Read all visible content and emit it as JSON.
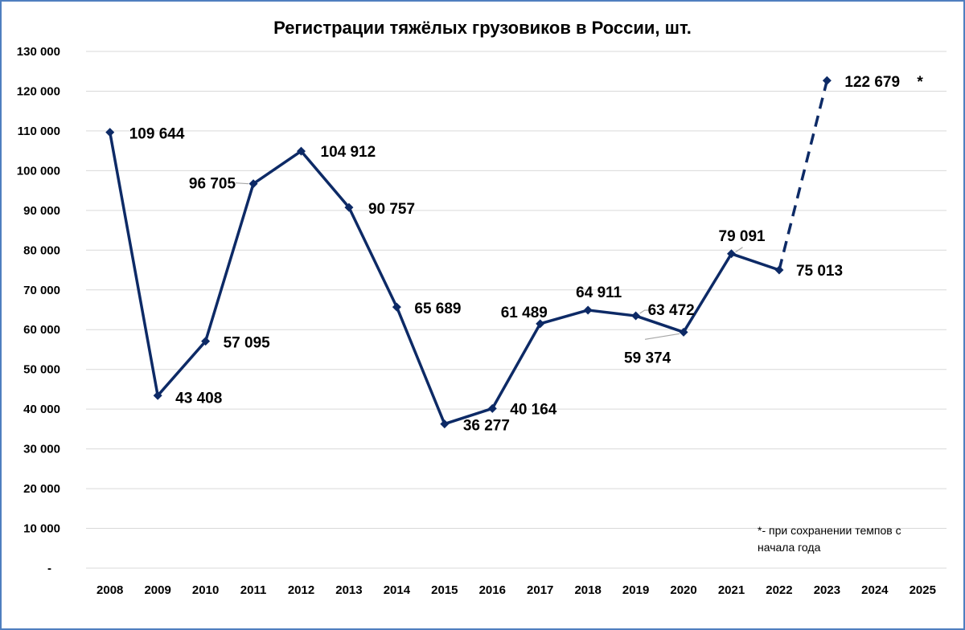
{
  "chart_data": {
    "type": "line",
    "title": "Регистрации тяжёлых грузовиков в России, шт.",
    "xlabel": "",
    "ylabel": "",
    "ylim": [
      0,
      130000
    ],
    "y_ticks": [
      0,
      10000,
      20000,
      30000,
      40000,
      50000,
      60000,
      70000,
      80000,
      90000,
      100000,
      110000,
      120000,
      130000
    ],
    "y_tick_labels": [
      "-",
      "10 000",
      "20 000",
      "30 000",
      "40 000",
      "50 000",
      "60 000",
      "70 000",
      "80 000",
      "90 000",
      "100 000",
      "110 000",
      "120 000",
      "130 000"
    ],
    "categories": [
      "2008",
      "2009",
      "2010",
      "2011",
      "2012",
      "2013",
      "2014",
      "2015",
      "2016",
      "2017",
      "2018",
      "2019",
      "2020",
      "2021",
      "2022",
      "2023",
      "2024",
      "2025"
    ],
    "grid": true,
    "legend": "none",
    "series": [
      {
        "values": [
          109644,
          43408,
          57095,
          96705,
          104912,
          90757,
          65689,
          36277,
          40164,
          61489,
          64911,
          63472,
          59374,
          79091,
          75013,
          122679,
          null,
          null
        ],
        "labels": [
          "109 644",
          "43 408",
          "57 095",
          "96 705",
          "104 912",
          "90 757",
          "65 689",
          "36 277",
          "40 164",
          "61 489",
          "64 911",
          "63 472",
          "59 374",
          "79 091",
          "75 013",
          "122 679",
          "",
          ""
        ],
        "color": "#0d2a66",
        "projected_from_index": 14,
        "projected_marker": "*"
      }
    ],
    "footnote": [
      "*- при сохранении темпов с",
      "начала года"
    ]
  },
  "colors": {
    "line": "#0d2a66",
    "grid": "#d9d9d9",
    "frame": "#4f7fbf",
    "leader": "#a6a6a6"
  }
}
